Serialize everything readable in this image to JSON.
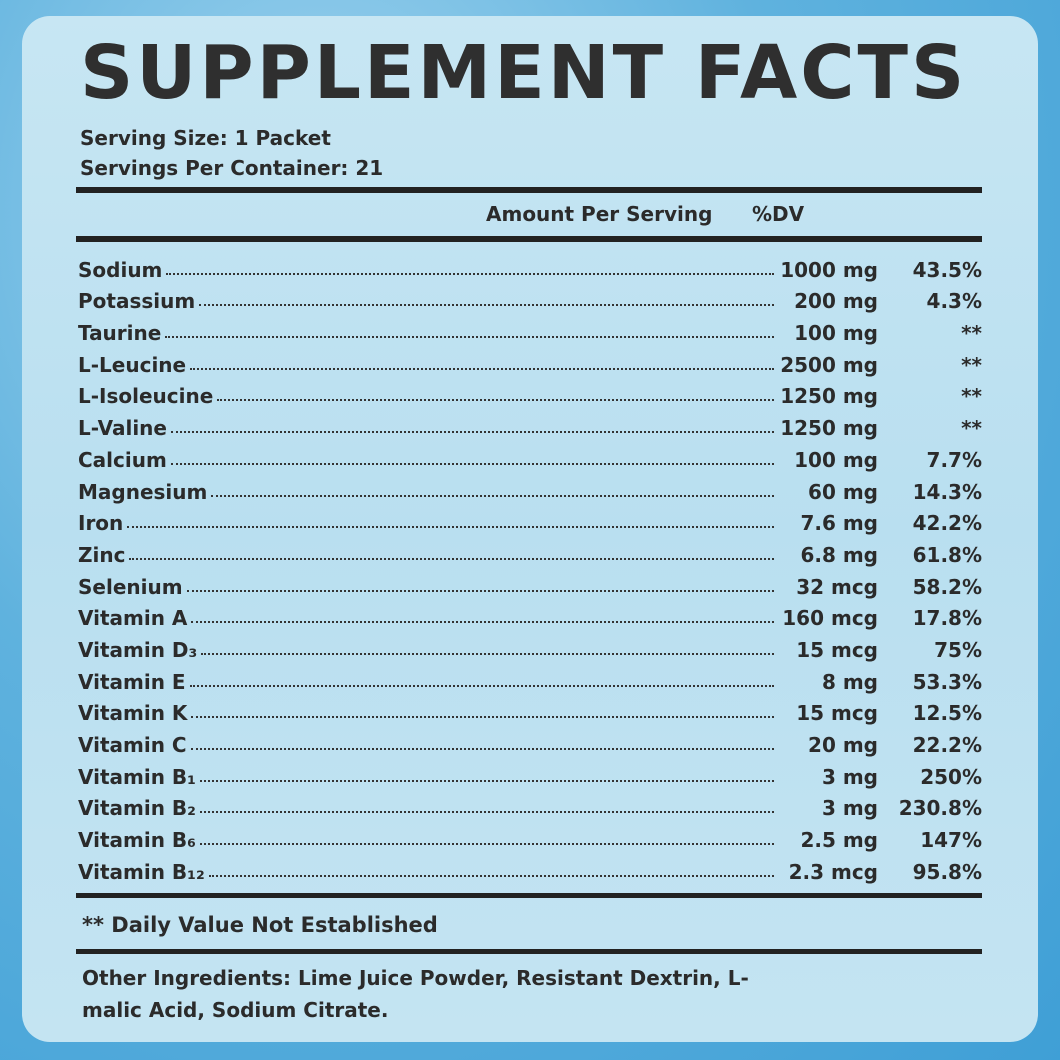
{
  "header": {
    "title": "SUPPLEMENT FACTS",
    "serving_size": "Serving Size: 1 Packet",
    "servings_per_container": "Servings Per Container: 21"
  },
  "table": {
    "columns": [
      "Amount Per Serving",
      "%DV"
    ],
    "rows": [
      [
        "Sodium",
        "1000 mg",
        "43.5%"
      ],
      [
        "Potassium",
        "200 mg",
        "4.3%"
      ],
      [
        "Taurine",
        "100 mg",
        "**"
      ],
      [
        "L-Leucine",
        "2500 mg",
        "**"
      ],
      [
        "L-Isoleucine",
        "1250 mg",
        "**"
      ],
      [
        "L-Valine",
        "1250 mg",
        "**"
      ],
      [
        "Calcium",
        "100 mg",
        "7.7%"
      ],
      [
        "Magnesium",
        "60 mg",
        "14.3%"
      ],
      [
        "Iron",
        "7.6 mg",
        "42.2%"
      ],
      [
        "Zinc",
        "6.8 mg",
        "61.8%"
      ],
      [
        "Selenium",
        "32 mcg",
        "58.2%"
      ],
      [
        "Vitamin A",
        "160 mcg",
        "17.8%"
      ],
      [
        "Vitamin D₃",
        "15 mcg",
        "75%"
      ],
      [
        "Vitamin E",
        "8 mg",
        "53.3%"
      ],
      [
        "Vitamin K",
        "15 mcg",
        "12.5%"
      ],
      [
        "Vitamin C",
        "20 mg",
        "22.2%"
      ],
      [
        "Vitamin B₁",
        "3 mg",
        "250%"
      ],
      [
        "Vitamin B₂",
        "3 mg",
        "230.8%"
      ],
      [
        "Vitamin B₆",
        "2.5 mg",
        "147%"
      ],
      [
        "Vitamin B₁₂",
        "2.3 mcg",
        "95.8%"
      ]
    ]
  },
  "footnote": "** Daily Value Not Established",
  "other_ingredients": "Other Ingredients: Lime Juice Powder, Resistant Dextrin, L-malic Acid, Sodium Citrate."
}
